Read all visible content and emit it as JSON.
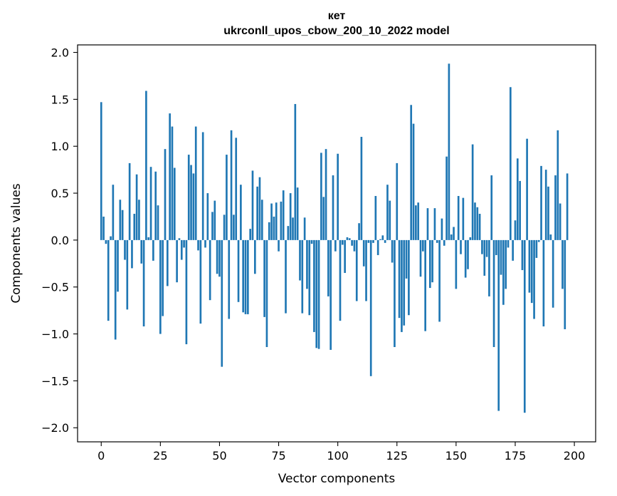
{
  "chart_data": {
    "type": "bar",
    "title_lines": [
      "кет",
      "ukrconll_upos_cbow_200_10_2022 model"
    ],
    "xlabel": "Vector components",
    "ylabel": "Components values",
    "xlim": [
      -10,
      209
    ],
    "ylim": [
      -2.15,
      2.08
    ],
    "x_ticks": [
      0,
      25,
      50,
      75,
      100,
      125,
      150,
      175,
      200
    ],
    "y_ticks": [
      -2.0,
      -1.5,
      -1.0,
      -0.5,
      0.0,
      0.5,
      1.0,
      1.5,
      2.0
    ],
    "y_tick_labels": [
      "−2.0",
      "−1.5",
      "−1.0",
      "−0.5",
      "0.0",
      "0.5",
      "1.0",
      "1.5",
      "2.0"
    ],
    "bar_color": "#1f77b4",
    "grid": false,
    "values": [
      1.47,
      0.25,
      -0.04,
      -0.86,
      0.04,
      0.59,
      -1.06,
      -0.55,
      0.43,
      0.32,
      -0.21,
      -0.74,
      0.82,
      -0.3,
      0.28,
      0.7,
      0.43,
      -0.25,
      -0.92,
      1.59,
      0.03,
      0.78,
      -0.22,
      0.73,
      0.37,
      -1.0,
      -0.81,
      0.97,
      -0.49,
      1.35,
      1.21,
      0.77,
      -0.45,
      0.02,
      -0.21,
      -0.08,
      -1.11,
      0.91,
      0.8,
      0.71,
      1.21,
      -0.11,
      -0.89,
      1.15,
      -0.08,
      0.5,
      -0.64,
      0.3,
      0.42,
      -0.36,
      -0.39,
      -1.35,
      0.27,
      0.91,
      -0.84,
      1.17,
      0.27,
      1.09,
      -0.66,
      0.59,
      -0.77,
      -0.79,
      -0.79,
      0.12,
      0.74,
      -0.36,
      0.57,
      0.67,
      0.43,
      -0.82,
      -1.14,
      0.19,
      0.39,
      0.25,
      0.4,
      -0.12,
      0.41,
      0.53,
      -0.78,
      0.15,
      0.5,
      0.24,
      1.45,
      0.56,
      -0.43,
      -0.78,
      0.24,
      -0.52,
      -0.8,
      -0.04,
      -0.98,
      -1.15,
      -1.16,
      0.93,
      0.46,
      0.97,
      -0.6,
      -1.17,
      0.69,
      -0.12,
      0.92,
      -0.86,
      -0.05,
      -0.35,
      0.03,
      0.02,
      -0.06,
      -0.12,
      -0.65,
      0.18,
      1.1,
      -0.28,
      -0.65,
      -0.03,
      -1.45,
      -0.03,
      0.47,
      -0.16,
      0.01,
      0.05,
      -0.03,
      0.59,
      0.42,
      -0.24,
      -1.14,
      0.82,
      -0.83,
      -0.98,
      -0.91,
      -0.41,
      -0.8,
      1.44,
      1.24,
      0.37,
      0.4,
      -0.39,
      -0.12,
      -0.97,
      0.34,
      -0.51,
      -0.45,
      0.34,
      -0.03,
      -0.87,
      0.23,
      -0.06,
      0.89,
      1.88,
      0.06,
      0.14,
      -0.52,
      0.47,
      -0.15,
      0.45,
      -0.4,
      -0.31,
      0.03,
      1.02,
      0.4,
      0.35,
      0.28,
      -0.15,
      -0.38,
      -0.18,
      -0.6,
      0.69,
      -1.14,
      -0.16,
      -1.82,
      -0.37,
      -0.69,
      -0.52,
      -0.08,
      1.63,
      -0.22,
      0.21,
      0.87,
      0.63,
      -0.32,
      -1.84,
      1.08,
      -0.56,
      -0.67,
      -0.84,
      -0.19,
      -0.02,
      0.79,
      -0.92,
      0.75,
      0.57,
      0.06,
      -0.72,
      0.69,
      1.17,
      0.39,
      -0.52,
      -0.95,
      0.71
    ]
  }
}
